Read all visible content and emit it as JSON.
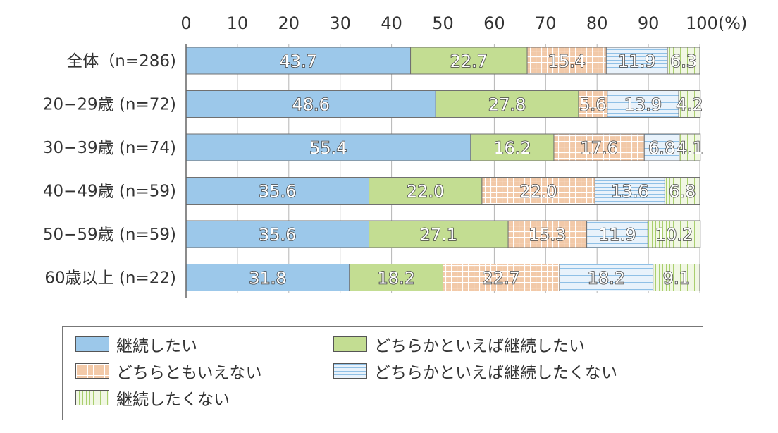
{
  "chart_data": {
    "type": "bar",
    "orientation": "horizontal",
    "stacked": true,
    "x_ticks": [
      "0",
      "10",
      "20",
      "30",
      "40",
      "50",
      "60",
      "70",
      "80",
      "90",
      "100"
    ],
    "x_unit": "(%)",
    "xlim": [
      0,
      100
    ],
    "categories": [
      "全体（n=286)",
      "20−29歳 (n=72)",
      "30−39歳 (n=74)",
      "40−49歳 (n=59)",
      "50−59歳 (n=59)",
      "60歳以上 (n=22)"
    ],
    "series": [
      {
        "name": "継続したい",
        "color": "#9cc8ea",
        "pattern": "solid",
        "values": [
          43.7,
          48.6,
          55.4,
          35.6,
          35.6,
          31.8
        ],
        "labels": [
          "43.7",
          "48.6",
          "55.4",
          "35.6",
          "35.6",
          "31.8"
        ]
      },
      {
        "name": "どちらかといえば継続したい",
        "color": "#c3dd92",
        "pattern": "solid",
        "values": [
          22.7,
          27.8,
          16.2,
          22.0,
          27.1,
          18.2
        ],
        "labels": [
          "22.7",
          "27.8",
          "16.2",
          "22.0",
          "27.1",
          "18.2"
        ]
      },
      {
        "name": "どちらともいえない",
        "color": "#f2c9a8",
        "pattern": "grid",
        "values": [
          15.4,
          5.6,
          17.6,
          22.0,
          15.3,
          22.7
        ],
        "labels": [
          "15.4",
          "5.6",
          "17.6",
          "22.0",
          "15.3",
          "22.7"
        ]
      },
      {
        "name": "どちらかといえば継続したくない",
        "color": "#d7e8f7",
        "pattern": "horizontal-lines",
        "values": [
          11.9,
          13.9,
          6.8,
          13.6,
          11.9,
          18.2
        ],
        "labels": [
          "11.9",
          "13.9",
          "6.8",
          "13.6",
          "11.9",
          "18.2"
        ]
      },
      {
        "name": "継続したくない",
        "color": "#e6f1cf",
        "pattern": "vertical-lines",
        "values": [
          6.3,
          4.2,
          4.1,
          6.8,
          10.2,
          9.1
        ],
        "labels": [
          "6.3",
          "4.2",
          "4.1",
          "6.8",
          "10.2",
          "9.1"
        ]
      }
    ],
    "grid": true,
    "legend_position": "bottom"
  }
}
